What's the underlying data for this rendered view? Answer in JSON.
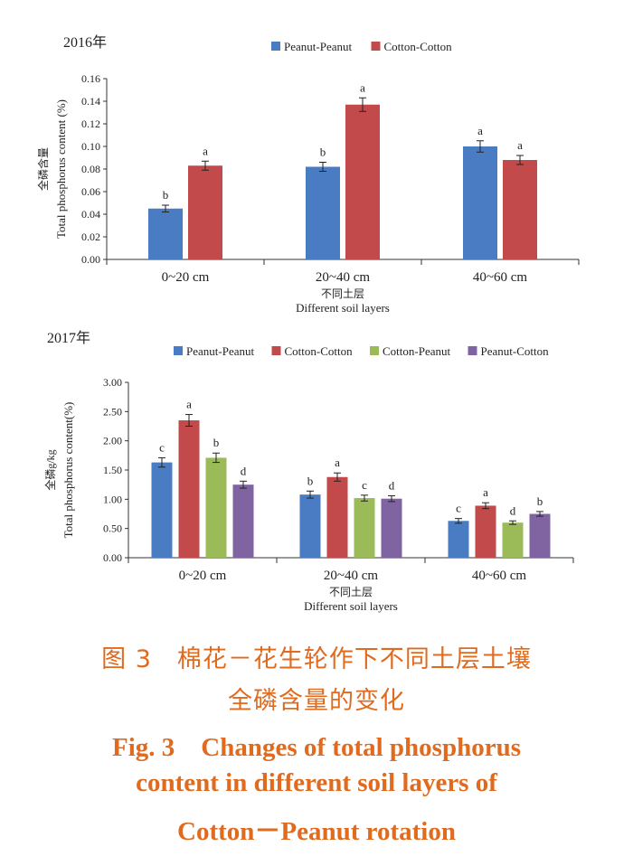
{
  "chart_data": [
    {
      "type": "bar",
      "year_label": "2016年",
      "categories": [
        "0~20 cm",
        "20~40 cm",
        "40~60 cm"
      ],
      "series": [
        {
          "name": "Peanut-Peanut",
          "color": "#4a7cc4",
          "values": [
            0.045,
            0.082,
            0.1
          ],
          "errors": [
            0.003,
            0.004,
            0.005
          ],
          "letters": [
            "b",
            "b",
            "a"
          ]
        },
        {
          "name": "Cotton-Cotton",
          "color": "#c24a4a",
          "values": [
            0.083,
            0.137,
            0.088
          ],
          "errors": [
            0.004,
            0.006,
            0.004
          ],
          "letters": [
            "a",
            "a",
            "a"
          ]
        }
      ],
      "ylabel_cn": "全磷含量",
      "ylabel_en": "Total phosphorus content (%)",
      "xlabel_cn": "不同土层",
      "xlabel_en": "Different soil layers",
      "ylim": [
        0,
        0.16
      ],
      "yticks": [
        "0.00",
        "0.02",
        "0.04",
        "0.06",
        "0.08",
        "0.10",
        "0.12",
        "0.14",
        "0.16"
      ],
      "legend_position": "top-right"
    },
    {
      "type": "bar",
      "year_label": "2017年",
      "categories": [
        "0~20 cm",
        "20~40 cm",
        "40~60 cm"
      ],
      "series": [
        {
          "name": "Peanut-Peanut",
          "color": "#4a7cc4",
          "values": [
            1.63,
            1.08,
            0.63
          ],
          "errors": [
            0.08,
            0.06,
            0.04
          ],
          "letters": [
            "c",
            "b",
            "c"
          ]
        },
        {
          "name": "Cotton-Cotton",
          "color": "#c24a4a",
          "values": [
            2.35,
            1.38,
            0.89
          ],
          "errors": [
            0.1,
            0.07,
            0.05
          ],
          "letters": [
            "a",
            "a",
            "a"
          ]
        },
        {
          "name": "Cotton-Peanut",
          "color": "#9bbb59",
          "values": [
            1.71,
            1.02,
            0.6
          ],
          "errors": [
            0.08,
            0.05,
            0.03
          ],
          "letters": [
            "b",
            "c",
            "d"
          ]
        },
        {
          "name": "Peanut-Cotton",
          "color": "#8064a2",
          "values": [
            1.25,
            1.01,
            0.75
          ],
          "errors": [
            0.06,
            0.05,
            0.04
          ],
          "letters": [
            "d",
            "d",
            "b"
          ]
        }
      ],
      "ylabel_cn": "全磷g/kg",
      "ylabel_en": "Total phosphorus content(%)",
      "xlabel_cn": "不同土层",
      "xlabel_en": "Different soil layers",
      "ylim": [
        0,
        3.0
      ],
      "yticks": [
        "0.00",
        "0.50",
        "1.00",
        "1.50",
        "2.00",
        "2.50",
        "3.00"
      ],
      "legend_position": "top"
    }
  ],
  "caption": {
    "cn_line1": "图 3　棉花－花生轮作下不同土层土壤",
    "cn_line2": "全磷含量的变化",
    "en_line1": "Fig. 3　Changes of total phosphorus",
    "en_line2": "content in different soil layers of",
    "en_line3": "Cotton－Peanut rotation"
  }
}
